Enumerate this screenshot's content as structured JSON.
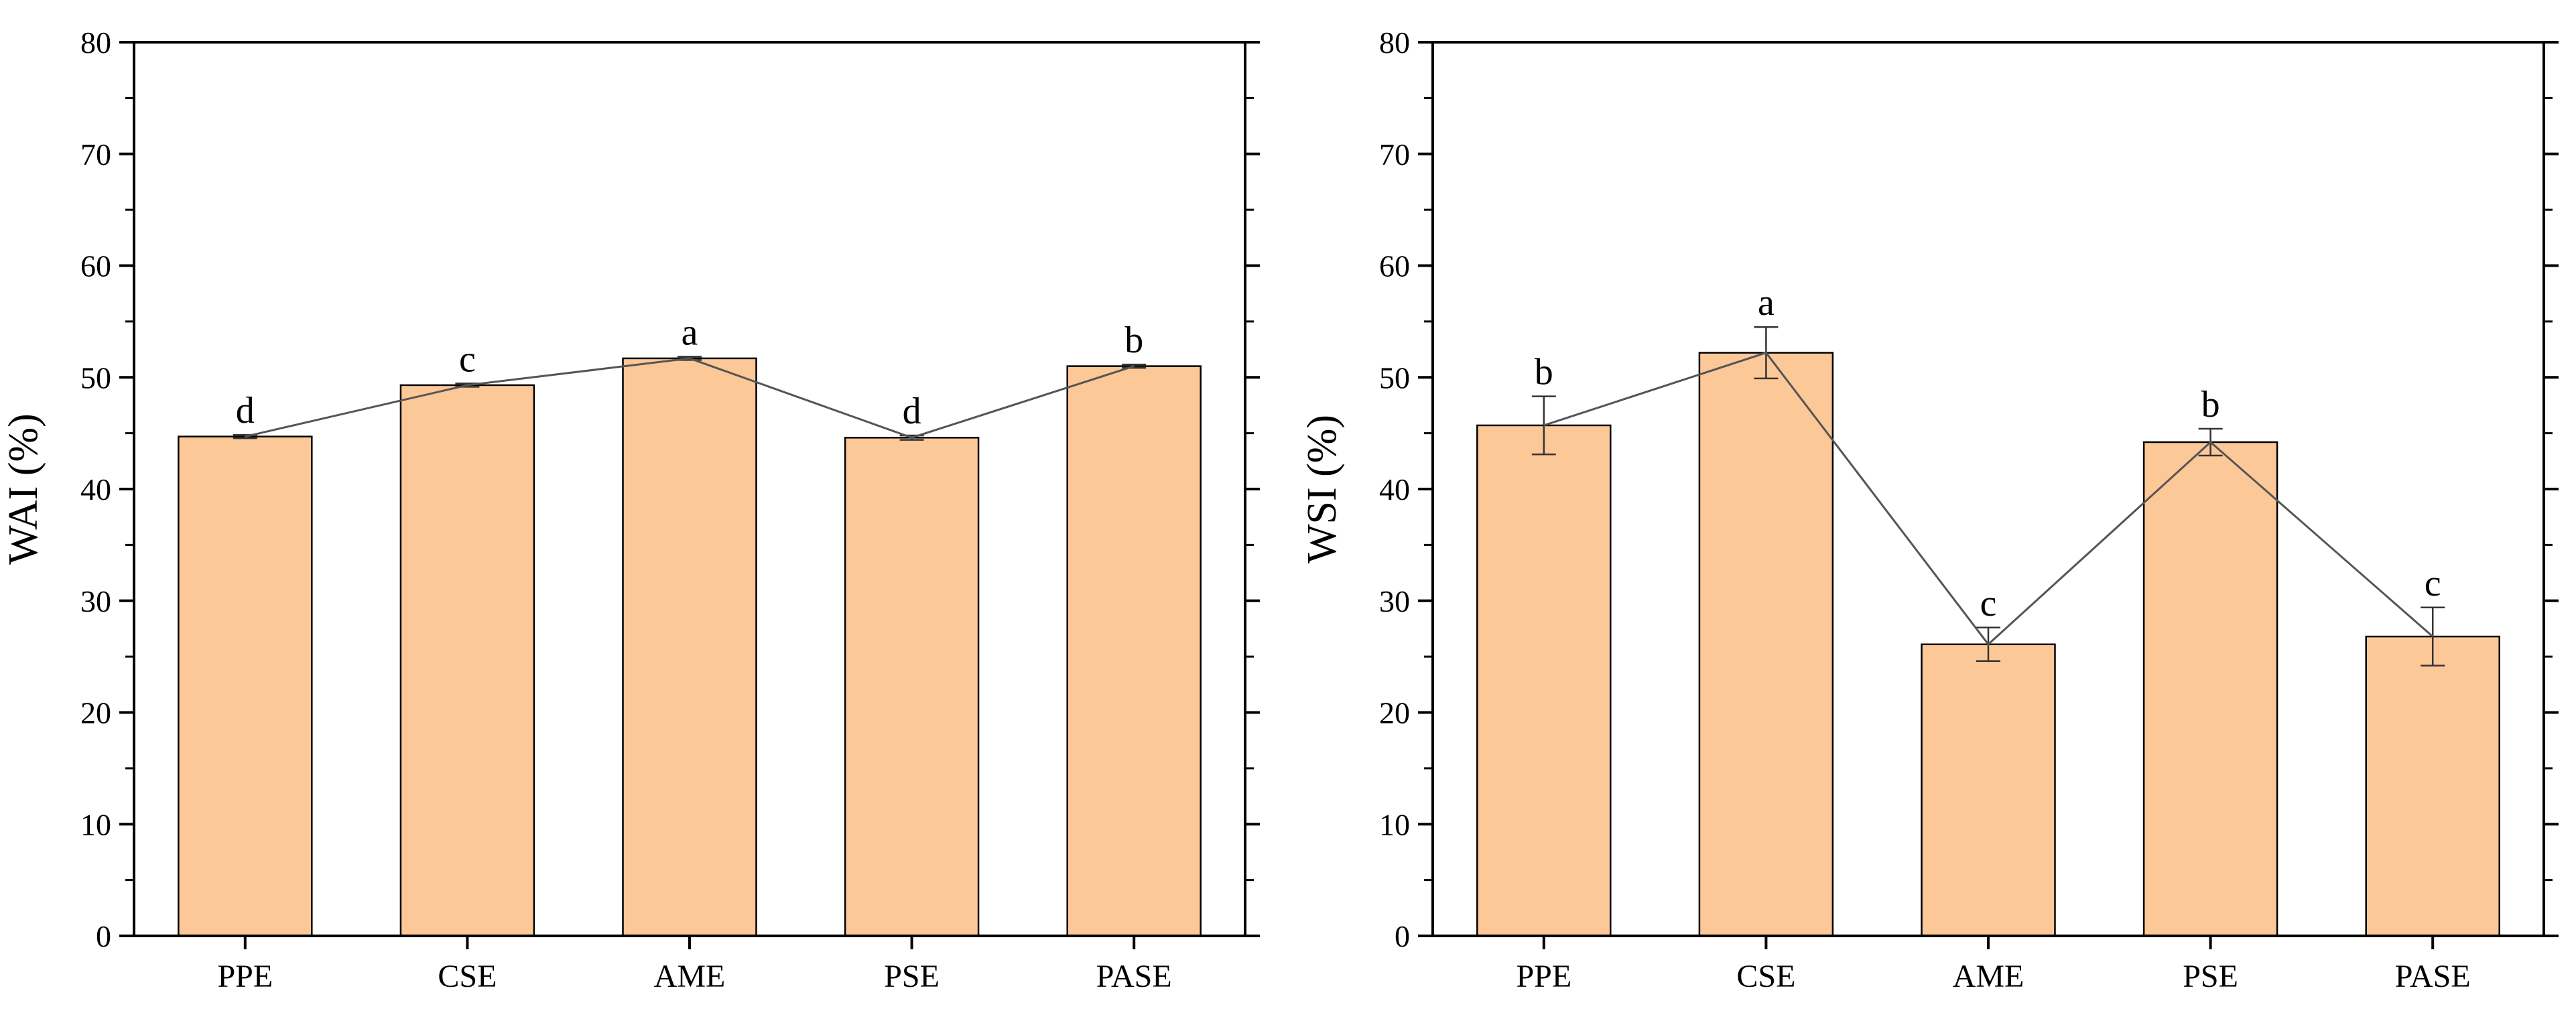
{
  "colors": {
    "bar_fill": "#fdc898",
    "bar_stroke": "#000000",
    "line": "#555555",
    "axis": "#000000"
  },
  "chart_data": [
    {
      "type": "bar",
      "categories": [
        "PPE",
        "CSE",
        "AME",
        "PSE",
        "PASE"
      ],
      "values": [
        44.7,
        49.3,
        51.7,
        44.6,
        51.0
      ],
      "errors": [
        0.15,
        0.15,
        0.15,
        0.2,
        0.15
      ],
      "significance": [
        "d",
        "c",
        "a",
        "d",
        "b"
      ],
      "trend_line": true,
      "title": "",
      "xlabel": "",
      "ylabel": "WAI (%)",
      "ylim": [
        0,
        80
      ],
      "yticks": [
        0,
        10,
        20,
        30,
        40,
        50,
        60,
        70,
        80
      ],
      "grid": false
    },
    {
      "type": "bar",
      "categories": [
        "PPE",
        "CSE",
        "AME",
        "PSE",
        "PASE"
      ],
      "values": [
        45.7,
        52.2,
        26.1,
        44.2,
        26.8
      ],
      "errors": [
        2.6,
        2.3,
        1.5,
        1.2,
        2.6
      ],
      "significance": [
        "b",
        "a",
        "c",
        "b",
        "c"
      ],
      "trend_line": true,
      "title": "",
      "xlabel": "",
      "ylabel": "WSI (%)",
      "ylim": [
        0,
        80
      ],
      "yticks": [
        0,
        10,
        20,
        30,
        40,
        50,
        60,
        70,
        80
      ],
      "grid": false
    }
  ]
}
